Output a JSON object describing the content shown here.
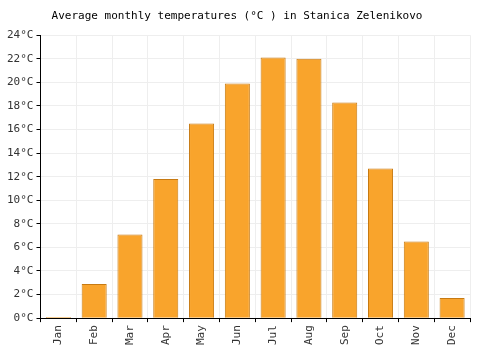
{
  "chart_data": {
    "type": "bar",
    "title": "Average monthly temperatures (°C ) in Stanica Zelenikovo",
    "categories": [
      "Jan",
      "Feb",
      "Mar",
      "Apr",
      "May",
      "Jun",
      "Jul",
      "Aug",
      "Sep",
      "Oct",
      "Nov",
      "Dec"
    ],
    "values": [
      0.1,
      2.9,
      7.1,
      11.8,
      16.5,
      19.9,
      22.1,
      22.0,
      18.3,
      12.7,
      6.5,
      1.7
    ],
    "color": "#f9a42c",
    "ylim": [
      0,
      24
    ],
    "yticks": [
      {
        "value": 0,
        "label": "0°C"
      },
      {
        "value": 2,
        "label": "2°C"
      },
      {
        "value": 4,
        "label": "4°C"
      },
      {
        "value": 6,
        "label": "6°C"
      },
      {
        "value": 8,
        "label": "8°C"
      },
      {
        "value": 10,
        "label": "10°C"
      },
      {
        "value": 12,
        "label": "12°C"
      },
      {
        "value": 14,
        "label": "14°C"
      },
      {
        "value": 16,
        "label": "16°C"
      },
      {
        "value": 18,
        "label": "18°C"
      },
      {
        "value": 20,
        "label": "20°C"
      },
      {
        "value": 22,
        "label": "22°C"
      },
      {
        "value": 24,
        "label": "24°C"
      }
    ],
    "grid": true
  }
}
